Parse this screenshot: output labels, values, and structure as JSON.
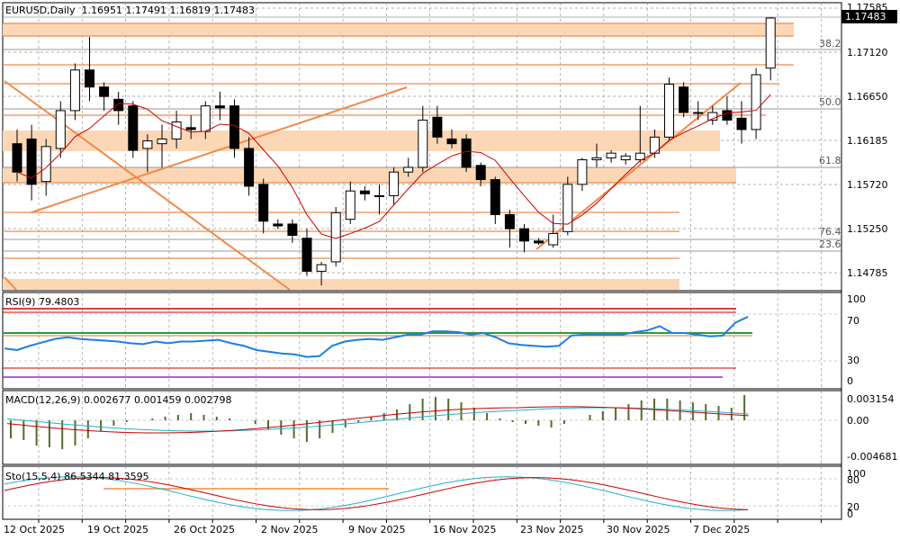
{
  "header": {
    "symbol": "EURUSD",
    "timeframe": "Daily",
    "open": "1.16951",
    "high": "1.17491",
    "low": "1.16819",
    "close": "1.17483"
  },
  "price_axis": {
    "labels": [
      "1.17585",
      "1.17120",
      "1.16650",
      "1.16185",
      "1.15720",
      "1.15250",
      "1.14785"
    ],
    "current": "1.17483"
  },
  "fib_levels": [
    "38.2",
    "50.0",
    "61.8",
    "76.4",
    "23.6"
  ],
  "rsi": {
    "label": "RSI(9) 79.4803",
    "axis": [
      "100",
      "70",
      "30",
      "0"
    ]
  },
  "macd": {
    "label": "MACD(12,26,9) 0.002677 0.001459 0.002798",
    "axis": [
      "0.003154",
      "0.00",
      "-0.004681"
    ]
  },
  "stoch": {
    "label": "Sto(15,5,4) 86.5344 81.3595",
    "axis": [
      "100",
      "80",
      "20",
      "0"
    ]
  },
  "x_axis": [
    "12 Oct 2025",
    "19 Oct 2025",
    "26 Oct 2025",
    "2 Nov 2025",
    "9 Nov 2025",
    "16 Nov 2025",
    "23 Nov 2025",
    "30 Nov 2025",
    "7 Dec 2025"
  ],
  "colors": {
    "zone": "#fcd7b6",
    "line": "#f08a4b",
    "ma": "#cc0000",
    "rsi": "#1e7fe0",
    "signal": "#20b2c8",
    "hist": "#556b2f",
    "level_green": "#339933",
    "level_purple": "#8a2be2"
  },
  "chart_data": {
    "type": "candlestick",
    "symbol": "EURUSD",
    "timeframe": "Daily",
    "ylim": [
      1.145,
      1.177
    ],
    "candles": [
      {
        "o": 1.1615,
        "h": 1.163,
        "l": 1.1575,
        "c": 1.1585
      },
      {
        "o": 1.162,
        "h": 1.1635,
        "l": 1.1555,
        "c": 1.1572
      },
      {
        "o": 1.1575,
        "h": 1.162,
        "l": 1.156,
        "c": 1.1612
      },
      {
        "o": 1.161,
        "h": 1.166,
        "l": 1.16,
        "c": 1.165
      },
      {
        "o": 1.165,
        "h": 1.17,
        "l": 1.164,
        "c": 1.1693
      },
      {
        "o": 1.1693,
        "h": 1.1728,
        "l": 1.166,
        "c": 1.1675
      },
      {
        "o": 1.1675,
        "h": 1.168,
        "l": 1.165,
        "c": 1.1665
      },
      {
        "o": 1.1662,
        "h": 1.167,
        "l": 1.1635,
        "c": 1.165
      },
      {
        "o": 1.1655,
        "h": 1.166,
        "l": 1.16,
        "c": 1.1608
      },
      {
        "o": 1.161,
        "h": 1.1625,
        "l": 1.1585,
        "c": 1.1618
      },
      {
        "o": 1.1615,
        "h": 1.1635,
        "l": 1.159,
        "c": 1.162
      },
      {
        "o": 1.162,
        "h": 1.165,
        "l": 1.161,
        "c": 1.1638
      },
      {
        "o": 1.1632,
        "h": 1.1645,
        "l": 1.162,
        "c": 1.163
      },
      {
        "o": 1.1628,
        "h": 1.166,
        "l": 1.162,
        "c": 1.1655
      },
      {
        "o": 1.1655,
        "h": 1.167,
        "l": 1.164,
        "c": 1.1653
      },
      {
        "o": 1.1655,
        "h": 1.1662,
        "l": 1.16,
        "c": 1.161
      },
      {
        "o": 1.161,
        "h": 1.1622,
        "l": 1.156,
        "c": 1.157
      },
      {
        "o": 1.1572,
        "h": 1.1578,
        "l": 1.152,
        "c": 1.1533
      },
      {
        "o": 1.153,
        "h": 1.1535,
        "l": 1.1525,
        "c": 1.1528
      },
      {
        "o": 1.153,
        "h": 1.1535,
        "l": 1.151,
        "c": 1.1518
      },
      {
        "o": 1.1515,
        "h": 1.1525,
        "l": 1.1475,
        "c": 1.148
      },
      {
        "o": 1.148,
        "h": 1.149,
        "l": 1.1465,
        "c": 1.1487
      },
      {
        "o": 1.149,
        "h": 1.1548,
        "l": 1.1485,
        "c": 1.1542
      },
      {
        "o": 1.1535,
        "h": 1.1575,
        "l": 1.153,
        "c": 1.1565
      },
      {
        "o": 1.1565,
        "h": 1.157,
        "l": 1.1555,
        "c": 1.1562
      },
      {
        "o": 1.156,
        "h": 1.1572,
        "l": 1.154,
        "c": 1.156
      },
      {
        "o": 1.156,
        "h": 1.159,
        "l": 1.155,
        "c": 1.1585
      },
      {
        "o": 1.1585,
        "h": 1.16,
        "l": 1.158,
        "c": 1.159
      },
      {
        "o": 1.159,
        "h": 1.1655,
        "l": 1.1585,
        "c": 1.164
      },
      {
        "o": 1.1643,
        "h": 1.1655,
        "l": 1.1615,
        "c": 1.1622
      },
      {
        "o": 1.162,
        "h": 1.163,
        "l": 1.161,
        "c": 1.1615
      },
      {
        "o": 1.162,
        "h": 1.1625,
        "l": 1.1585,
        "c": 1.159
      },
      {
        "o": 1.1592,
        "h": 1.1595,
        "l": 1.157,
        "c": 1.1577
      },
      {
        "o": 1.1577,
        "h": 1.158,
        "l": 1.153,
        "c": 1.154
      },
      {
        "o": 1.154,
        "h": 1.1545,
        "l": 1.1505,
        "c": 1.1525
      },
      {
        "o": 1.1525,
        "h": 1.153,
        "l": 1.15,
        "c": 1.1512
      },
      {
        "o": 1.1512,
        "h": 1.1515,
        "l": 1.1508,
        "c": 1.151
      },
      {
        "o": 1.1508,
        "h": 1.154,
        "l": 1.1505,
        "c": 1.152
      },
      {
        "o": 1.1522,
        "h": 1.158,
        "l": 1.1518,
        "c": 1.1572
      },
      {
        "o": 1.1572,
        "h": 1.16,
        "l": 1.1565,
        "c": 1.1598
      },
      {
        "o": 1.1598,
        "h": 1.1615,
        "l": 1.159,
        "c": 1.16
      },
      {
        "o": 1.16,
        "h": 1.1608,
        "l": 1.1595,
        "c": 1.1605
      },
      {
        "o": 1.1598,
        "h": 1.1605,
        "l": 1.1593,
        "c": 1.1602
      },
      {
        "o": 1.1598,
        "h": 1.1655,
        "l": 1.1595,
        "c": 1.1605
      },
      {
        "o": 1.1605,
        "h": 1.163,
        "l": 1.16,
        "c": 1.1622
      },
      {
        "o": 1.1622,
        "h": 1.1685,
        "l": 1.1618,
        "c": 1.1678
      },
      {
        "o": 1.1675,
        "h": 1.168,
        "l": 1.1643,
        "c": 1.1648
      },
      {
        "o": 1.1648,
        "h": 1.166,
        "l": 1.164,
        "c": 1.1648
      },
      {
        "o": 1.164,
        "h": 1.1655,
        "l": 1.1635,
        "c": 1.1648
      },
      {
        "o": 1.165,
        "h": 1.1665,
        "l": 1.1635,
        "c": 1.164
      },
      {
        "o": 1.1642,
        "h": 1.166,
        "l": 1.1615,
        "c": 1.163
      },
      {
        "o": 1.163,
        "h": 1.1695,
        "l": 1.162,
        "c": 1.1688
      },
      {
        "o": 1.1695,
        "h": 1.1749,
        "l": 1.1682,
        "c": 1.1748
      }
    ]
  }
}
